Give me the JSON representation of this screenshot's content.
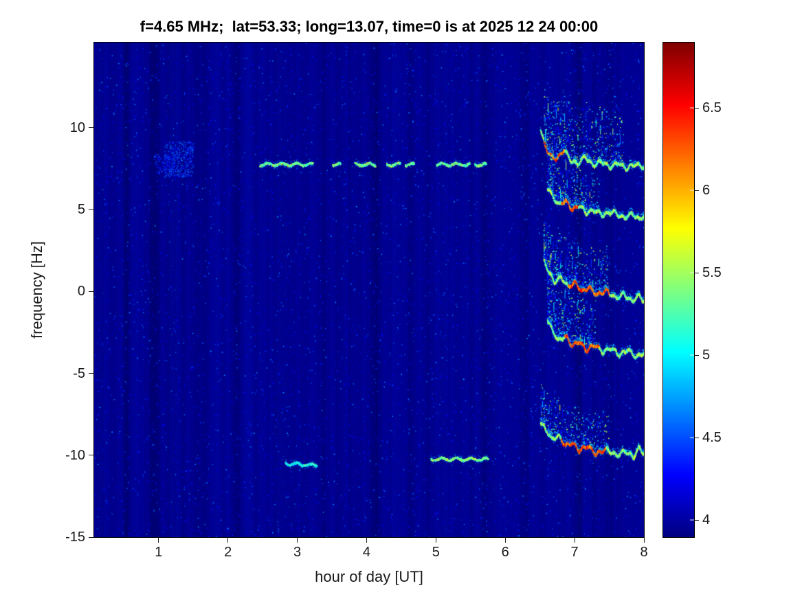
{
  "chart_data": {
    "type": "heatmap",
    "title": "f=4.65 MHz;  lat=53.33; long=13.07, time=0 is at 2025 12 24 00:00",
    "xlabel": "hour of day [UT]",
    "ylabel": "frequency [Hz]",
    "xlim": [
      0.07,
      8
    ],
    "ylim": [
      -15,
      15.2
    ],
    "xticks": [
      1,
      2,
      3,
      4,
      5,
      6,
      7,
      8
    ],
    "yticks": [
      10,
      5,
      0,
      -5,
      -10,
      -15
    ],
    "grid": false,
    "colormap": "jet",
    "background_color": "#00008f",
    "colorbar": {
      "position": "right",
      "ticks": [
        4,
        4.5,
        5,
        5.5,
        6,
        6.5
      ],
      "range": [
        3.896,
        6.896
      ]
    },
    "features": {
      "noise": {
        "base": 3.95,
        "speckle_max": 4.7,
        "density": 26000,
        "bright_dots": 700
      },
      "diffuse_patches": [
        {
          "hours": [
            1.08,
            1.5
          ],
          "freqs": [
            7.0,
            9.2
          ],
          "value": 4.45,
          "count": 520
        },
        {
          "hours": [
            0.95,
            1.25
          ],
          "freqs": [
            7.2,
            8.4
          ],
          "value": 4.25,
          "count": 160
        }
      ],
      "dashed_bands": [
        {
          "freq": 7.8,
          "value": 5.3,
          "slope": 0,
          "segments": [
            [
              2.45,
              3.22
            ],
            [
              3.5,
              3.62
            ],
            [
              3.82,
              4.12
            ],
            [
              4.28,
              4.48
            ],
            [
              4.55,
              4.68
            ],
            [
              5.0,
              5.48
            ],
            [
              5.55,
              5.72
            ]
          ]
        },
        {
          "freq": -10.45,
          "value": 5.0,
          "slope": -0.3,
          "segments": [
            [
              2.82,
              3.28
            ]
          ]
        },
        {
          "freq": -10.2,
          "value": 5.35,
          "slope": 0,
          "segments": [
            [
              4.92,
              5.75
            ]
          ]
        }
      ],
      "traces": [
        {
          "name": "trace-8Hz",
          "points": [
            [
              6.5,
              9.9
            ],
            [
              6.56,
              9.0
            ],
            [
              6.64,
              8.3
            ],
            [
              6.74,
              8.1
            ],
            [
              6.84,
              8.7
            ],
            [
              6.94,
              8.0
            ],
            [
              7.04,
              7.8
            ],
            [
              7.14,
              8.3
            ],
            [
              7.26,
              7.7
            ],
            [
              7.38,
              8.0
            ],
            [
              7.5,
              7.6
            ],
            [
              7.62,
              7.9
            ],
            [
              7.74,
              7.5
            ],
            [
              7.86,
              7.8
            ],
            [
              8.0,
              7.6
            ]
          ],
          "hot": [
            6.55,
            6.85
          ],
          "scatter": {
            "hours": [
              6.55,
              7.7
            ],
            "extent": 3.2,
            "count": 700
          }
        },
        {
          "name": "trace-5Hz",
          "points": [
            [
              6.6,
              6.4
            ],
            [
              6.68,
              5.8
            ],
            [
              6.76,
              5.3
            ],
            [
              6.86,
              5.6
            ],
            [
              6.96,
              5.0
            ],
            [
              7.06,
              5.3
            ],
            [
              7.16,
              4.8
            ],
            [
              7.28,
              5.0
            ],
            [
              7.4,
              4.7
            ],
            [
              7.55,
              4.9
            ],
            [
              7.7,
              4.5
            ],
            [
              7.82,
              4.8
            ],
            [
              7.92,
              4.4
            ],
            [
              8.0,
              4.7
            ]
          ],
          "hot": [
            6.8,
            7.05
          ],
          "scatter": {
            "hours": [
              6.6,
              7.35
            ],
            "extent": 2.2,
            "count": 450
          }
        },
        {
          "name": "trace-0Hz",
          "points": [
            [
              6.55,
              1.9
            ],
            [
              6.62,
              1.2
            ],
            [
              6.7,
              0.6
            ],
            [
              6.8,
              0.9
            ],
            [
              6.9,
              0.3
            ],
            [
              7.0,
              0.6
            ],
            [
              7.1,
              0.0
            ],
            [
              7.2,
              0.3
            ],
            [
              7.32,
              -0.2
            ],
            [
              7.45,
              0.1
            ],
            [
              7.58,
              -0.4
            ],
            [
              7.7,
              -0.1
            ],
            [
              7.82,
              -0.6
            ],
            [
              7.92,
              -0.2
            ],
            [
              8.0,
              -0.6
            ]
          ],
          "hot": [
            6.9,
            7.5
          ],
          "scatter": {
            "hours": [
              6.55,
              7.5
            ],
            "extent": 2.5,
            "count": 520
          }
        },
        {
          "name": "trace-minus3Hz",
          "points": [
            [
              6.6,
              -1.7
            ],
            [
              6.68,
              -2.4
            ],
            [
              6.76,
              -3.0
            ],
            [
              6.86,
              -2.7
            ],
            [
              6.96,
              -3.3
            ],
            [
              7.06,
              -3.0
            ],
            [
              7.16,
              -3.6
            ],
            [
              7.28,
              -3.2
            ],
            [
              7.4,
              -3.7
            ],
            [
              7.52,
              -3.4
            ],
            [
              7.64,
              -3.9
            ],
            [
              7.76,
              -3.5
            ],
            [
              7.88,
              -4.0
            ],
            [
              8.0,
              -3.7
            ]
          ],
          "hot": [
            6.85,
            7.35
          ],
          "scatter": {
            "hours": [
              6.6,
              7.3
            ],
            "extent": 2.8,
            "count": 520
          }
        },
        {
          "name": "trace-minus9Hz",
          "points": [
            [
              6.5,
              -8.0
            ],
            [
              6.58,
              -8.4
            ],
            [
              6.66,
              -9.0
            ],
            [
              6.76,
              -8.8
            ],
            [
              6.86,
              -9.4
            ],
            [
              6.96,
              -9.2
            ],
            [
              7.06,
              -9.7
            ],
            [
              7.18,
              -9.4
            ],
            [
              7.3,
              -9.9
            ],
            [
              7.45,
              -9.6
            ],
            [
              7.6,
              -10.0
            ],
            [
              7.72,
              -9.7
            ],
            [
              7.84,
              -10.1
            ],
            [
              7.92,
              -9.5
            ],
            [
              8.0,
              -9.9
            ]
          ],
          "hot": [
            6.8,
            7.45
          ],
          "scatter": {
            "hours": [
              6.5,
              7.5
            ],
            "extent": 2.2,
            "count": 460
          }
        }
      ]
    }
  }
}
